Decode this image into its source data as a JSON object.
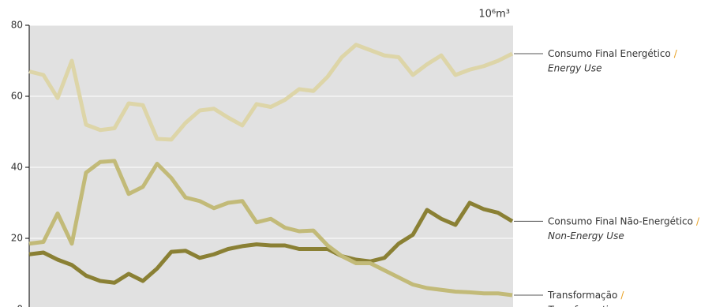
{
  "chart_data": {
    "type": "line",
    "unit": "10⁶m³",
    "label_separator": "/",
    "categories": [
      null,
      null,
      null,
      null,
      null,
      null,
      null,
      null,
      null,
      null,
      null,
      null,
      null,
      null,
      null,
      null,
      null,
      null,
      null,
      null,
      null,
      null,
      null,
      null,
      null,
      null,
      null,
      null,
      null,
      null,
      null,
      null,
      null,
      null,
      null
    ],
    "ylim": [
      0,
      80
    ],
    "yticks": [
      0,
      20,
      40,
      60,
      80
    ],
    "grid": true,
    "series": [
      {
        "name": "Consumo Final Energético",
        "name_en": "Energy Use",
        "color": "#ddd5a8",
        "values": [
          67,
          66,
          59.5,
          70,
          52,
          50.5,
          51,
          58,
          57.5,
          48,
          47.8,
          52.5,
          56,
          56.5,
          54,
          51.8,
          57.8,
          57,
          59,
          62,
          61.5,
          65.5,
          71,
          74.5,
          73,
          71.5,
          71,
          66,
          69,
          71.5,
          66,
          67.5,
          68.5,
          70,
          72
        ]
      },
      {
        "name": "Consumo Final Não-Energético",
        "name_en": "Non-Energy Use",
        "color": "#8a8034",
        "values": [
          15.5,
          16,
          14,
          12.5,
          9.5,
          8,
          7.5,
          10,
          8,
          11.5,
          16.2,
          16.5,
          14.5,
          15.5,
          17,
          17.8,
          18.3,
          18,
          18,
          17,
          17,
          17,
          15,
          14,
          13.5,
          14.5,
          18.5,
          21,
          28,
          25.5,
          23.8,
          30,
          28.2,
          27.2,
          24.8
        ]
      },
      {
        "name": "Transformação",
        "name_en": "Transformation",
        "color": "#c2ba78",
        "values": [
          18.5,
          19,
          27,
          18.5,
          38.5,
          41.5,
          41.8,
          32.5,
          34.5,
          41,
          37,
          31.5,
          30.5,
          28.5,
          30,
          30.5,
          24.5,
          25.5,
          23,
          22,
          22.2,
          18,
          15,
          13,
          13,
          11,
          9,
          7,
          6,
          5.5,
          5,
          4.8,
          4.5,
          4.5,
          4
        ]
      }
    ]
  }
}
